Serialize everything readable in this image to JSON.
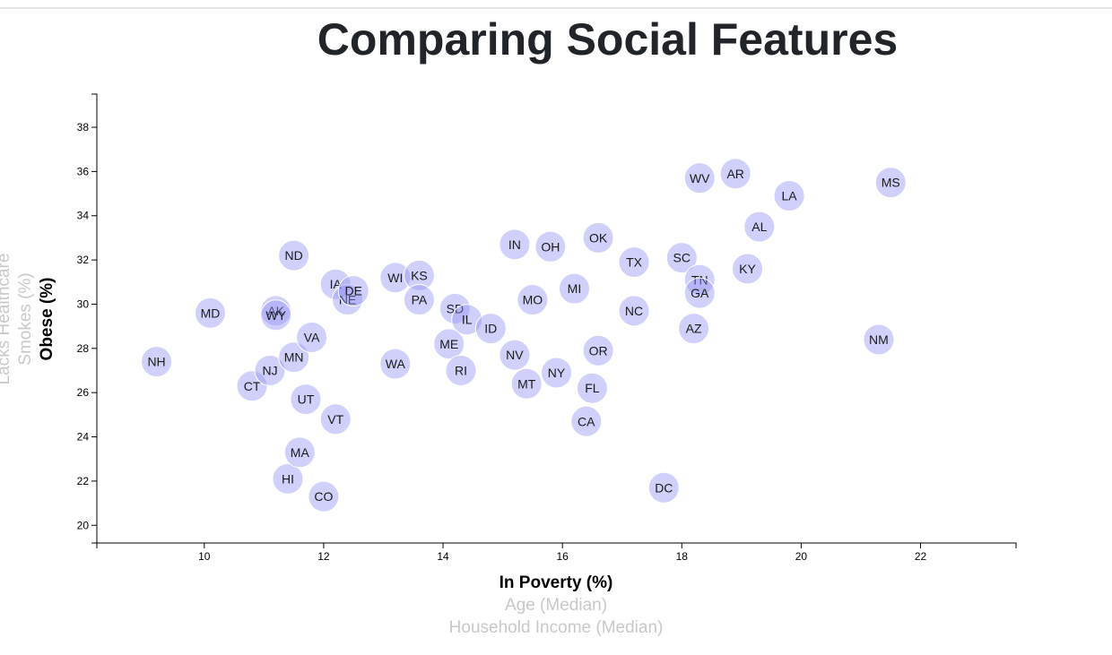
{
  "page": {
    "title": "Comparing Social Features"
  },
  "chart_data": {
    "type": "scatter",
    "x_axis": {
      "active_label": "In Poverty (%)",
      "inactive_labels": [
        "Age (Median)",
        "Household Income (Median)"
      ],
      "domain": [
        8.2,
        23.6
      ],
      "ticks": [
        10,
        12,
        14,
        16,
        18,
        20,
        22
      ]
    },
    "y_axis": {
      "active_label": "Obese (%)",
      "inactive_labels": [
        "Smokes (%)",
        "Lacks Healthcare"
      ],
      "domain": [
        19.2,
        39.5
      ],
      "ticks": [
        20,
        22,
        24,
        26,
        28,
        30,
        32,
        34,
        36,
        38
      ]
    },
    "points": [
      {
        "abbr": "NH",
        "x": 9.2,
        "y": 27.4
      },
      {
        "abbr": "MD",
        "x": 10.1,
        "y": 29.6
      },
      {
        "abbr": "CT",
        "x": 10.8,
        "y": 26.3
      },
      {
        "abbr": "NJ",
        "x": 11.1,
        "y": 27.0
      },
      {
        "abbr": "AK",
        "x": 11.2,
        "y": 29.7
      },
      {
        "abbr": "WY",
        "x": 11.2,
        "y": 29.5
      },
      {
        "abbr": "HI",
        "x": 11.4,
        "y": 22.1
      },
      {
        "abbr": "ND",
        "x": 11.5,
        "y": 32.2
      },
      {
        "abbr": "MN",
        "x": 11.5,
        "y": 27.6
      },
      {
        "abbr": "UT",
        "x": 11.7,
        "y": 25.7
      },
      {
        "abbr": "MA",
        "x": 11.6,
        "y": 23.3
      },
      {
        "abbr": "VA",
        "x": 11.8,
        "y": 28.5
      },
      {
        "abbr": "CO",
        "x": 12.0,
        "y": 21.3
      },
      {
        "abbr": "IA",
        "x": 12.2,
        "y": 30.9
      },
      {
        "abbr": "VT",
        "x": 12.2,
        "y": 24.8
      },
      {
        "abbr": "NE",
        "x": 12.4,
        "y": 30.2
      },
      {
        "abbr": "DE",
        "x": 12.5,
        "y": 30.6
      },
      {
        "abbr": "WI",
        "x": 13.2,
        "y": 31.2
      },
      {
        "abbr": "WA",
        "x": 13.2,
        "y": 27.3
      },
      {
        "abbr": "KS",
        "x": 13.6,
        "y": 31.3
      },
      {
        "abbr": "PA",
        "x": 13.6,
        "y": 30.2
      },
      {
        "abbr": "ME",
        "x": 14.1,
        "y": 28.2
      },
      {
        "abbr": "SD",
        "x": 14.2,
        "y": 29.8
      },
      {
        "abbr": "RI",
        "x": 14.3,
        "y": 27.0
      },
      {
        "abbr": "IL",
        "x": 14.4,
        "y": 29.3
      },
      {
        "abbr": "ID",
        "x": 14.8,
        "y": 28.9
      },
      {
        "abbr": "IN",
        "x": 15.2,
        "y": 32.7
      },
      {
        "abbr": "NV",
        "x": 15.2,
        "y": 27.7
      },
      {
        "abbr": "MT",
        "x": 15.4,
        "y": 26.4
      },
      {
        "abbr": "MO",
        "x": 15.5,
        "y": 30.2
      },
      {
        "abbr": "OH",
        "x": 15.8,
        "y": 32.6
      },
      {
        "abbr": "NY",
        "x": 15.9,
        "y": 26.9
      },
      {
        "abbr": "MI",
        "x": 16.2,
        "y": 30.7
      },
      {
        "abbr": "CA",
        "x": 16.4,
        "y": 24.7
      },
      {
        "abbr": "FL",
        "x": 16.5,
        "y": 26.2
      },
      {
        "abbr": "OK",
        "x": 16.6,
        "y": 33.0
      },
      {
        "abbr": "OR",
        "x": 16.6,
        "y": 27.9
      },
      {
        "abbr": "TX",
        "x": 17.2,
        "y": 31.9
      },
      {
        "abbr": "NC",
        "x": 17.2,
        "y": 29.7
      },
      {
        "abbr": "DC",
        "x": 17.7,
        "y": 21.7
      },
      {
        "abbr": "SC",
        "x": 18.0,
        "y": 32.1
      },
      {
        "abbr": "AZ",
        "x": 18.2,
        "y": 28.9
      },
      {
        "abbr": "WV",
        "x": 18.3,
        "y": 35.7
      },
      {
        "abbr": "TN",
        "x": 18.3,
        "y": 31.1
      },
      {
        "abbr": "GA",
        "x": 18.3,
        "y": 30.5
      },
      {
        "abbr": "AR",
        "x": 18.9,
        "y": 35.9
      },
      {
        "abbr": "KY",
        "x": 19.1,
        "y": 31.6
      },
      {
        "abbr": "AL",
        "x": 19.3,
        "y": 33.5
      },
      {
        "abbr": "LA",
        "x": 19.8,
        "y": 34.9
      },
      {
        "abbr": "NM",
        "x": 21.3,
        "y": 28.4
      },
      {
        "abbr": "MS",
        "x": 21.5,
        "y": 35.5
      }
    ]
  }
}
